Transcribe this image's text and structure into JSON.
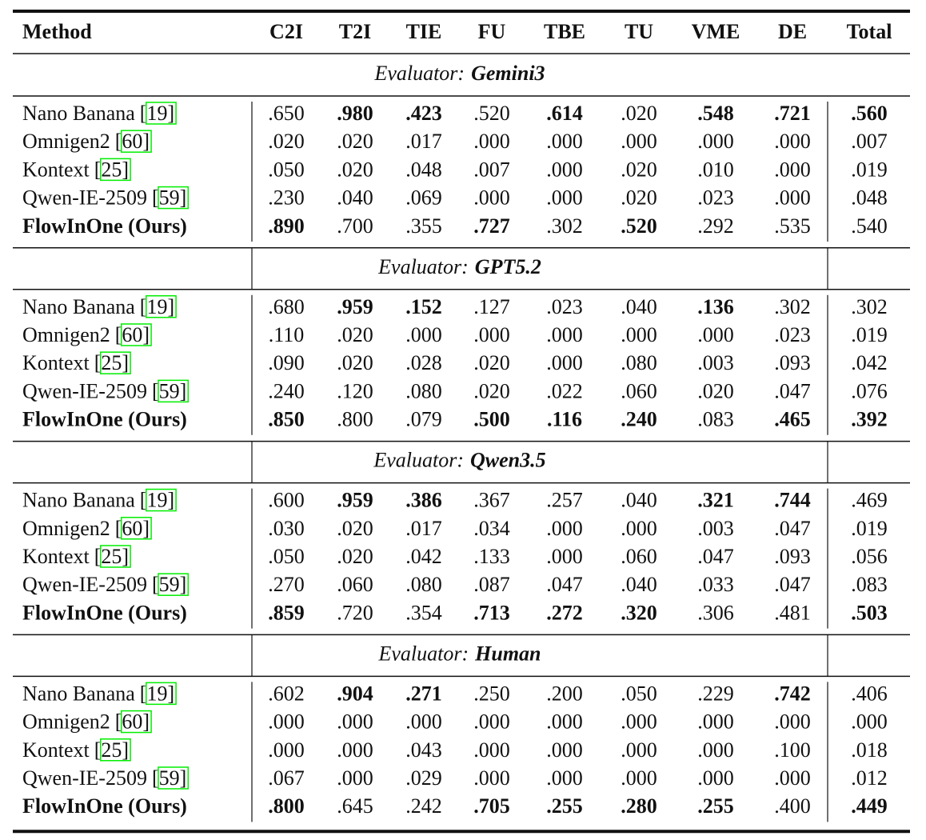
{
  "table": {
    "columns": [
      "Method",
      "C2I",
      "T2I",
      "TIE",
      "FU",
      "TBE",
      "TU",
      "VME",
      "DE",
      "Total"
    ],
    "sections": [
      {
        "evaluator_label": "Evaluator:",
        "evaluator": "Gemini3",
        "rows": [
          {
            "method": "Nano Banana",
            "cite": "[19]",
            "method_bold": false,
            "cells": [
              ".650",
              ".980",
              ".423",
              ".520",
              ".614",
              ".020",
              ".548",
              ".721",
              ".560"
            ],
            "bold": [
              1,
              2,
              4,
              6,
              7,
              8
            ]
          },
          {
            "method": "Omnigen2",
            "cite": "[60]",
            "method_bold": false,
            "cells": [
              ".020",
              ".020",
              ".017",
              ".000",
              ".000",
              ".000",
              ".000",
              ".000",
              ".007"
            ],
            "bold": []
          },
          {
            "method": "Kontext",
            "cite": "[25]",
            "method_bold": false,
            "cells": [
              ".050",
              ".020",
              ".048",
              ".007",
              ".000",
              ".020",
              ".010",
              ".000",
              ".019"
            ],
            "bold": []
          },
          {
            "method": "Qwen-IE-2509",
            "cite": "[59]",
            "method_bold": false,
            "cells": [
              ".230",
              ".040",
              ".069",
              ".000",
              ".000",
              ".020",
              ".023",
              ".000",
              ".048"
            ],
            "bold": []
          },
          {
            "method": "FlowInOne (Ours)",
            "method_bold": true,
            "cells": [
              ".890",
              ".700",
              ".355",
              ".727",
              ".302",
              ".520",
              ".292",
              ".535",
              ".540"
            ],
            "bold": [
              0,
              3,
              5
            ]
          }
        ]
      },
      {
        "evaluator_label": "Evaluator:",
        "evaluator": "GPT5.2",
        "rows": [
          {
            "method": "Nano Banana",
            "cite": "[19]",
            "method_bold": false,
            "cells": [
              ".680",
              ".959",
              ".152",
              ".127",
              ".023",
              ".040",
              ".136",
              ".302",
              ".302"
            ],
            "bold": [
              1,
              2,
              6
            ]
          },
          {
            "method": "Omnigen2",
            "cite": "[60]",
            "method_bold": false,
            "cells": [
              ".110",
              ".020",
              ".000",
              ".000",
              ".000",
              ".000",
              ".000",
              ".023",
              ".019"
            ],
            "bold": []
          },
          {
            "method": "Kontext",
            "cite": "[25]",
            "method_bold": false,
            "cells": [
              ".090",
              ".020",
              ".028",
              ".020",
              ".000",
              ".080",
              ".003",
              ".093",
              ".042"
            ],
            "bold": []
          },
          {
            "method": "Qwen-IE-2509",
            "cite": "[59]",
            "method_bold": false,
            "cells": [
              ".240",
              ".120",
              ".080",
              ".020",
              ".022",
              ".060",
              ".020",
              ".047",
              ".076"
            ],
            "bold": []
          },
          {
            "method": "FlowInOne (Ours)",
            "method_bold": true,
            "cells": [
              ".850",
              ".800",
              ".079",
              ".500",
              ".116",
              ".240",
              ".083",
              ".465",
              ".392"
            ],
            "bold": [
              0,
              3,
              4,
              5,
              7,
              8
            ]
          }
        ]
      },
      {
        "evaluator_label": "Evaluator:",
        "evaluator": "Qwen3.5",
        "rows": [
          {
            "method": "Nano Banana",
            "cite": "[19]",
            "method_bold": false,
            "cells": [
              ".600",
              ".959",
              ".386",
              ".367",
              ".257",
              ".040",
              ".321",
              ".744",
              ".469"
            ],
            "bold": [
              1,
              2,
              6,
              7
            ]
          },
          {
            "method": "Omnigen2",
            "cite": "[60]",
            "method_bold": false,
            "cells": [
              ".030",
              ".020",
              ".017",
              ".034",
              ".000",
              ".000",
              ".003",
              ".047",
              ".019"
            ],
            "bold": []
          },
          {
            "method": "Kontext",
            "cite": "[25]",
            "method_bold": false,
            "cells": [
              ".050",
              ".020",
              ".042",
              ".133",
              ".000",
              ".060",
              ".047",
              ".093",
              ".056"
            ],
            "bold": []
          },
          {
            "method": "Qwen-IE-2509",
            "cite": "[59]",
            "method_bold": false,
            "cells": [
              ".270",
              ".060",
              ".080",
              ".087",
              ".047",
              ".040",
              ".033",
              ".047",
              ".083"
            ],
            "bold": []
          },
          {
            "method": "FlowInOne (Ours)",
            "method_bold": true,
            "cells": [
              ".859",
              ".720",
              ".354",
              ".713",
              ".272",
              ".320",
              ".306",
              ".481",
              ".503"
            ],
            "bold": [
              0,
              3,
              4,
              5,
              8
            ]
          }
        ]
      },
      {
        "evaluator_label": "Evaluator:",
        "evaluator": "Human",
        "rows": [
          {
            "method": "Nano Banana",
            "cite": "[19]",
            "method_bold": false,
            "cells": [
              ".602",
              ".904",
              ".271",
              ".250",
              ".200",
              ".050",
              ".229",
              ".742",
              ".406"
            ],
            "bold": [
              1,
              2,
              7
            ]
          },
          {
            "method": "Omnigen2",
            "cite": "[60]",
            "method_bold": false,
            "cells": [
              ".000",
              ".000",
              ".000",
              ".000",
              ".000",
              ".000",
              ".000",
              ".000",
              ".000"
            ],
            "bold": []
          },
          {
            "method": "Kontext",
            "cite": "[25]",
            "method_bold": false,
            "cells": [
              ".000",
              ".000",
              ".043",
              ".000",
              ".000",
              ".000",
              ".000",
              ".100",
              ".018"
            ],
            "bold": []
          },
          {
            "method": "Qwen-IE-2509",
            "cite": "[59]",
            "method_bold": false,
            "cells": [
              ".067",
              ".000",
              ".029",
              ".000",
              ".000",
              ".000",
              ".000",
              ".000",
              ".012"
            ],
            "bold": []
          },
          {
            "method": "FlowInOne (Ours)",
            "method_bold": true,
            "cells": [
              ".800",
              ".645",
              ".242",
              ".705",
              ".255",
              ".280",
              ".255",
              ".400",
              ".449"
            ],
            "bold": [
              0,
              3,
              4,
              5,
              6,
              8
            ]
          }
        ]
      }
    ]
  }
}
